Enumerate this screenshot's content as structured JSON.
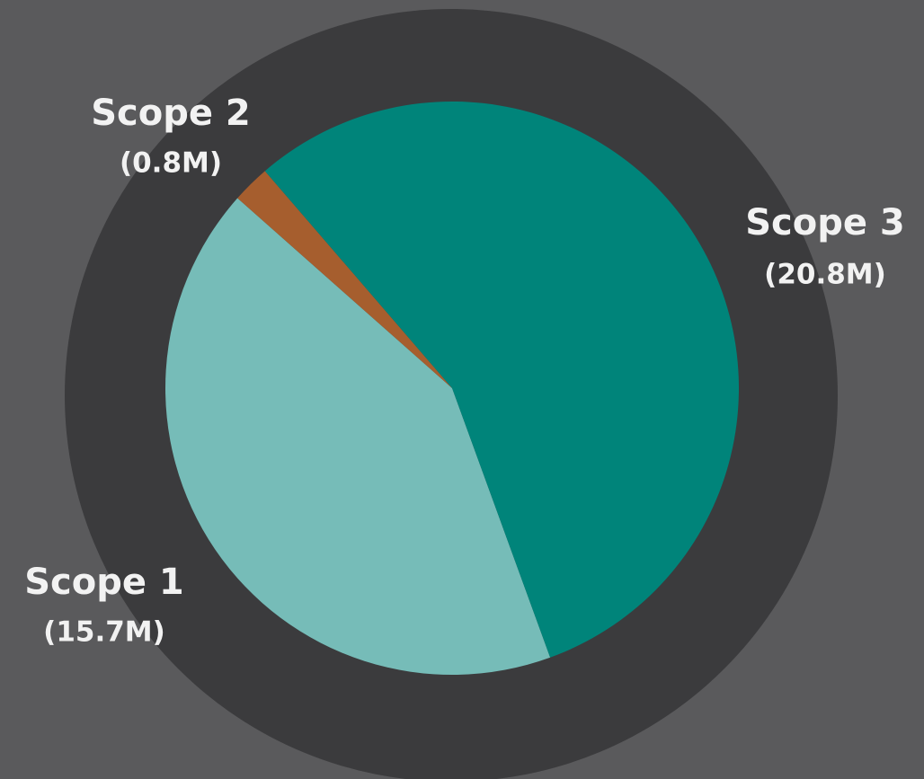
{
  "chart_data": {
    "type": "pie",
    "categories": [
      "Scope 1",
      "Scope 2",
      "Scope 3"
    ],
    "values": [
      15.7,
      0.8,
      20.8
    ],
    "value_labels": [
      "(15.7M)",
      "(0.8M)",
      "(20.8M)"
    ],
    "colors": [
      "#76bcb8",
      "#a65e2e",
      "#00847a"
    ]
  }
}
